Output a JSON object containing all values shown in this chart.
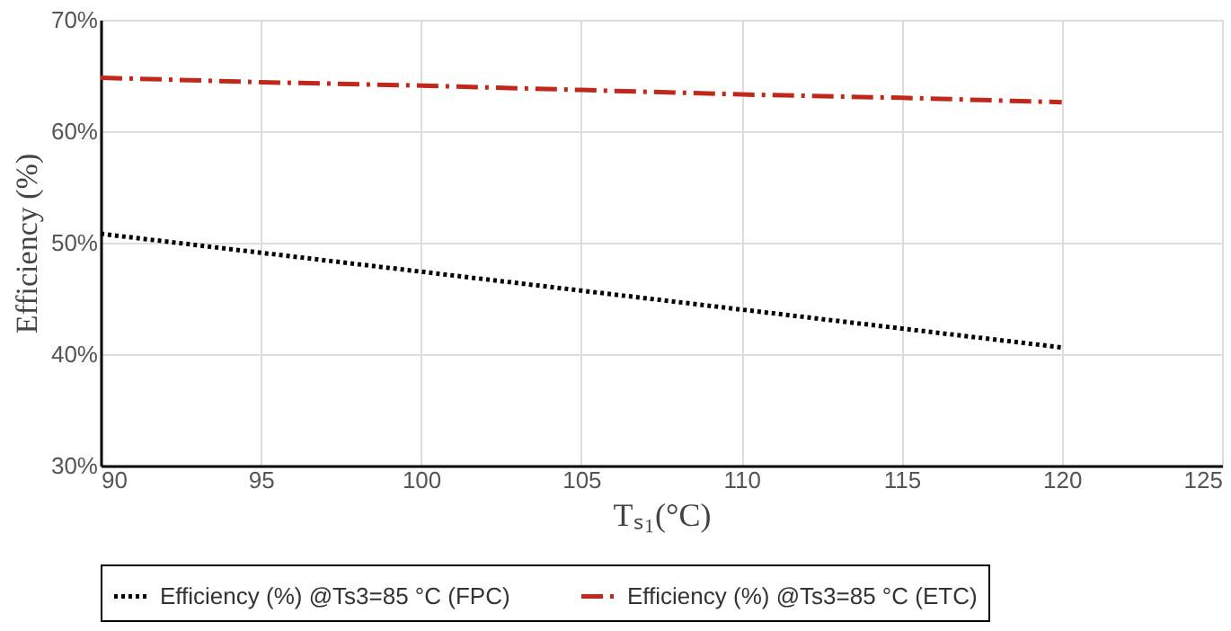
{
  "chart_data": {
    "type": "line",
    "xlabel": "Tₛ₁(°C)",
    "ylabel": "Efficiency (%)",
    "x": [
      90,
      95,
      100,
      105,
      110,
      115,
      120
    ],
    "series": [
      {
        "name": "Efficiency (%)  @Ts3=85 °C (FPC)",
        "color": "#000000",
        "line_style": "dotted",
        "values": [
          50.8,
          49.1,
          47.4,
          45.7,
          44.0,
          42.3,
          40.6
        ]
      },
      {
        "name": "Efficiency (%) @Ts3=85 °C (ETC)",
        "color": "#c0281c",
        "line_style": "dashdot",
        "values": [
          64.8,
          64.4,
          64.1,
          63.7,
          63.3,
          63.0,
          62.6
        ]
      }
    ],
    "xlim": [
      90,
      125
    ],
    "xticks": [
      90,
      95,
      100,
      105,
      110,
      115,
      120,
      125
    ],
    "ylim": [
      30,
      70
    ],
    "yticks": [
      {
        "value": 30,
        "label": "30%"
      },
      {
        "value": 40,
        "label": "40%"
      },
      {
        "value": 50,
        "label": "50%"
      },
      {
        "value": 60,
        "label": "60%"
      },
      {
        "value": 70,
        "label": "70%"
      }
    ],
    "grid": true,
    "legend": "bottom",
    "marker": "none"
  }
}
